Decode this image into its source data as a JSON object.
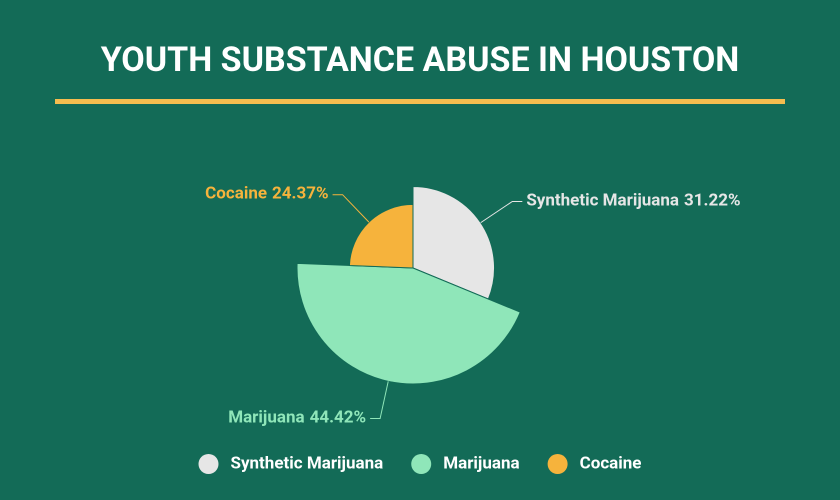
{
  "chart_data": {
    "type": "pie",
    "rose": true,
    "title": "YOUTH SUBSTANCE ABUSE IN HOUSTON",
    "categories": [
      "Synthetic Marijuana",
      "Marijuana",
      "Cocaine"
    ],
    "values": [
      31.22,
      44.42,
      24.37
    ],
    "value_labels": [
      "31.22%",
      "44.42%",
      "24.37%"
    ],
    "colors": [
      "#e6e6e6",
      "#8fe6b9",
      "#f6b33c"
    ],
    "legend": "bottom"
  }
}
